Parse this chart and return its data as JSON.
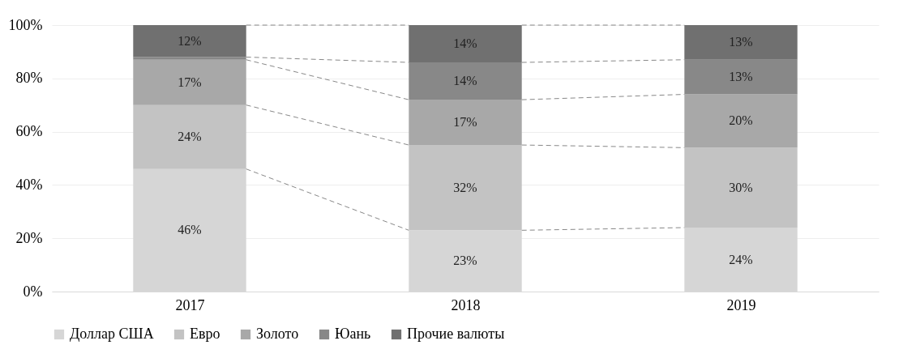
{
  "chart_data": {
    "type": "bar",
    "stacked": true,
    "categories": [
      "2017",
      "2018",
      "2019"
    ],
    "series": [
      {
        "name": "Доллар США",
        "color": "#d6d6d6",
        "values": [
          46,
          23,
          24
        ],
        "value_labels": [
          "46%",
          "23%",
          "24%"
        ]
      },
      {
        "name": "Евро",
        "color": "#c3c3c3",
        "values": [
          24,
          32,
          30
        ],
        "value_labels": [
          "24%",
          "32%",
          "30%"
        ]
      },
      {
        "name": "Золото",
        "color": "#a8a8a8",
        "values": [
          17,
          17,
          20
        ],
        "value_labels": [
          "17%",
          "17%",
          "20%"
        ]
      },
      {
        "name": "Юань",
        "color": "#888888",
        "values": [
          1,
          14,
          13
        ],
        "value_labels": [
          null,
          "14%",
          "13%"
        ]
      },
      {
        "name": "Прочие валюты",
        "color": "#707070",
        "values": [
          12,
          14,
          13
        ],
        "value_labels": [
          "12%",
          "14%",
          "13%"
        ]
      }
    ],
    "ylim": [
      0,
      100
    ],
    "yticks": [
      {
        "value": 0,
        "label": "0%"
      },
      {
        "value": 20,
        "label": "20%"
      },
      {
        "value": 40,
        "label": "40%"
      },
      {
        "value": 60,
        "label": "60%"
      },
      {
        "value": 80,
        "label": "80%"
      },
      {
        "value": 100,
        "label": "100%"
      }
    ],
    "grid": "y",
    "legend": "bottom"
  }
}
